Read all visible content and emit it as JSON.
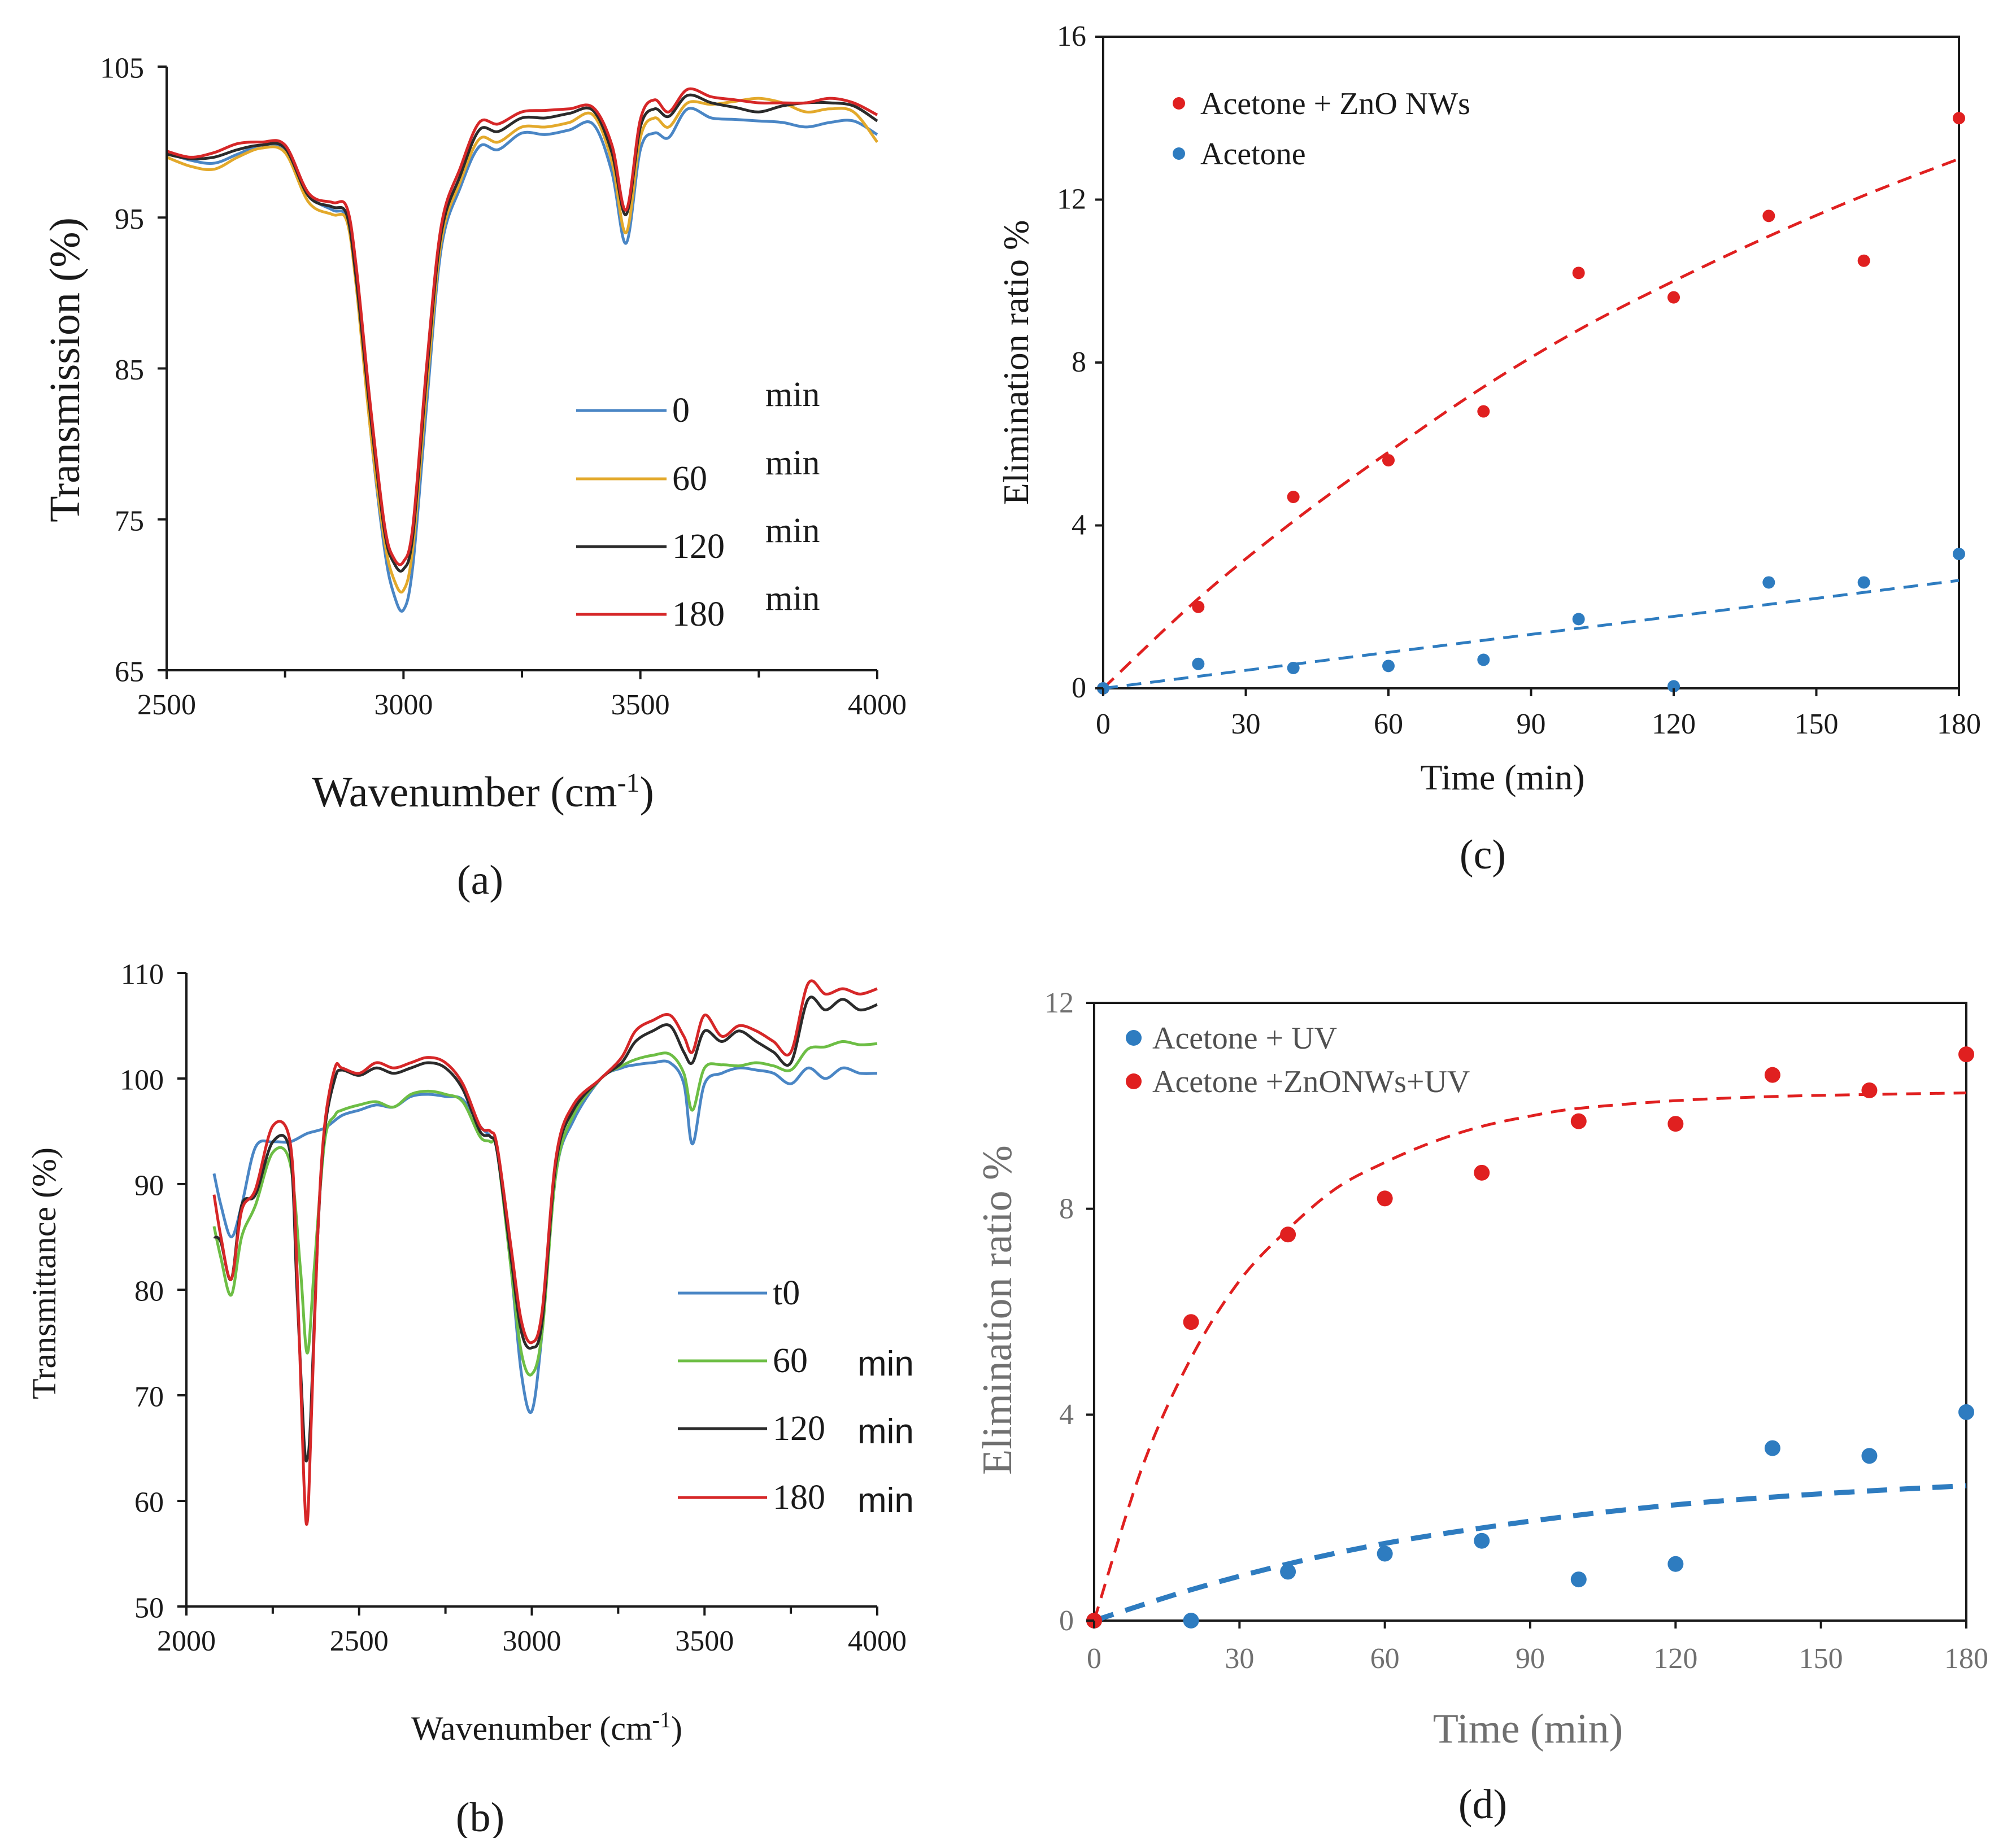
{
  "chart_data": [
    {
      "panel": "(a)",
      "type": "line",
      "xlabel": "Wavenumber (cm",
      "xlabel_sup": "-1",
      "xlabel_end": ")",
      "ylabel": "Transmission (%)",
      "xlim": [
        2500,
        4000
      ],
      "ylim": [
        65,
        105
      ],
      "xticks": [
        2500,
        3000,
        3500,
        4000
      ],
      "yticks": [
        65,
        75,
        85,
        95,
        105
      ],
      "legend_unit": "min",
      "series": [
        {
          "name": "0",
          "color": "#4A86C5",
          "x": [
            2500,
            2550,
            2600,
            2650,
            2700,
            2750,
            2800,
            2850,
            2880,
            2900,
            2930,
            2960,
            2980,
            3000,
            3020,
            3050,
            3080,
            3120,
            3160,
            3200,
            3250,
            3300,
            3350,
            3400,
            3440,
            3470,
            3500,
            3530,
            3560,
            3600,
            3650,
            3700,
            3750,
            3800,
            3850,
            3900,
            3950,
            4000
          ],
          "y": [
            99.3,
            98.8,
            98.6,
            99.2,
            99.8,
            99.5,
            96.5,
            95.5,
            95.0,
            91.0,
            81.0,
            73.0,
            70.0,
            69.0,
            72.0,
            83.0,
            93.0,
            97.0,
            99.7,
            99.5,
            100.6,
            100.5,
            100.8,
            101.2,
            98.0,
            93.3,
            99.5,
            100.6,
            100.3,
            102.2,
            101.6,
            101.5,
            101.4,
            101.3,
            101.0,
            101.3,
            101.4,
            100.5
          ]
        },
        {
          "name": "60",
          "color": "#E3A92B",
          "x": [
            2500,
            2550,
            2600,
            2650,
            2700,
            2750,
            2800,
            2850,
            2880,
            2900,
            2930,
            2960,
            2980,
            3000,
            3020,
            3050,
            3080,
            3120,
            3160,
            3200,
            3250,
            3300,
            3350,
            3400,
            3440,
            3470,
            3500,
            3530,
            3560,
            3600,
            3650,
            3700,
            3750,
            3800,
            3850,
            3900,
            3950,
            4000
          ],
          "y": [
            99.0,
            98.4,
            98.2,
            99.0,
            99.6,
            99.3,
            96.0,
            95.2,
            94.8,
            90.5,
            81.0,
            73.6,
            71.0,
            70.3,
            73.2,
            84.0,
            93.5,
            97.4,
            100.2,
            100.0,
            101.0,
            101.0,
            101.3,
            101.8,
            98.7,
            94.0,
            100.3,
            101.6,
            101.0,
            102.6,
            102.5,
            102.7,
            102.9,
            102.6,
            102.0,
            102.2,
            102.0,
            100.0
          ]
        },
        {
          "name": "120",
          "color": "#2B2B2B",
          "x": [
            2500,
            2550,
            2600,
            2650,
            2700,
            2750,
            2800,
            2850,
            2880,
            2900,
            2930,
            2960,
            2980,
            3000,
            3020,
            3050,
            3080,
            3120,
            3160,
            3200,
            3250,
            3300,
            3350,
            3400,
            3440,
            3470,
            3500,
            3530,
            3560,
            3600,
            3650,
            3700,
            3750,
            3800,
            3850,
            3900,
            3950,
            4000
          ],
          "y": [
            99.2,
            98.9,
            99.0,
            99.5,
            99.8,
            99.6,
            96.4,
            95.7,
            95.2,
            91.0,
            82.0,
            74.2,
            72.1,
            71.7,
            74.0,
            85.0,
            94.0,
            97.8,
            100.8,
            100.7,
            101.6,
            101.6,
            101.9,
            102.1,
            99.3,
            95.2,
            101.0,
            102.2,
            101.7,
            103.1,
            102.6,
            102.3,
            102.0,
            102.4,
            102.6,
            102.6,
            102.4,
            101.4
          ]
        },
        {
          "name": "180",
          "color": "#D62728",
          "x": [
            2500,
            2550,
            2600,
            2650,
            2700,
            2750,
            2800,
            2850,
            2880,
            2900,
            2930,
            2960,
            2980,
            3000,
            3020,
            3050,
            3080,
            3120,
            3160,
            3200,
            3250,
            3300,
            3350,
            3400,
            3440,
            3470,
            3500,
            3530,
            3560,
            3600,
            3650,
            3700,
            3750,
            3800,
            3850,
            3900,
            3950,
            4000
          ],
          "y": [
            99.4,
            99.0,
            99.3,
            99.9,
            100.0,
            99.8,
            96.6,
            96.0,
            95.7,
            91.8,
            82.6,
            74.6,
            72.4,
            72.2,
            74.6,
            85.6,
            94.5,
            98.3,
            101.3,
            101.2,
            102.0,
            102.1,
            102.2,
            102.3,
            99.8,
            95.5,
            101.5,
            102.8,
            102.0,
            103.5,
            103.0,
            102.8,
            102.6,
            102.6,
            102.6,
            102.9,
            102.6,
            101.8
          ]
        }
      ]
    },
    {
      "panel": "(b)",
      "type": "line",
      "xlabel": "Wavenumber (cm",
      "xlabel_sup": "-1",
      "xlabel_end": ")",
      "ylabel": "Transmittance (%)",
      "xlim": [
        2000,
        4000
      ],
      "ylim": [
        50,
        110
      ],
      "xticks": [
        2000,
        2500,
        3000,
        3500,
        4000
      ],
      "yticks": [
        50,
        60,
        70,
        80,
        90,
        100,
        110
      ],
      "legend_unit": "min",
      "series": [
        {
          "name": "t0",
          "color": "#4A86C5",
          "x": [
            2080,
            2100,
            2130,
            2160,
            2200,
            2250,
            2300,
            2350,
            2400,
            2450,
            2500,
            2550,
            2600,
            2650,
            2700,
            2750,
            2800,
            2850,
            2880,
            2900,
            2940,
            2970,
            3000,
            3030,
            3070,
            3120,
            3200,
            3260,
            3300,
            3350,
            3400,
            3440,
            3465,
            3500,
            3550,
            3600,
            3650,
            3700,
            3750,
            3800,
            3850,
            3900,
            3950,
            4000
          ],
          "y": [
            91,
            88,
            85,
            88,
            93.5,
            94,
            94,
            94.8,
            95.3,
            96.5,
            97,
            97.5,
            97.3,
            98.3,
            98.5,
            98.3,
            98,
            95.5,
            94.5,
            93,
            82,
            72,
            68.5,
            76,
            91,
            96,
            100,
            101,
            101.3,
            101.5,
            101.5,
            99.5,
            93.8,
            99.5,
            100.5,
            101,
            100.8,
            100.5,
            99.5,
            101,
            100,
            101,
            100.5,
            100.5
          ]
        },
        {
          "name": "60",
          "color": "#6DBE45",
          "x": [
            2080,
            2100,
            2130,
            2160,
            2200,
            2250,
            2300,
            2330,
            2350,
            2370,
            2400,
            2430,
            2450,
            2500,
            2550,
            2600,
            2650,
            2700,
            2750,
            2800,
            2850,
            2880,
            2900,
            2940,
            2970,
            3000,
            3030,
            3070,
            3120,
            3200,
            3260,
            3300,
            3350,
            3400,
            3440,
            3465,
            3500,
            3550,
            3600,
            3650,
            3700,
            3750,
            3800,
            3850,
            3900,
            3950,
            4000
          ],
          "y": [
            86,
            83,
            79.5,
            85,
            88,
            93,
            92,
            82,
            74,
            82,
            94,
            96.5,
            97,
            97.5,
            97.8,
            97.3,
            98.5,
            98.8,
            98.5,
            97.8,
            94.5,
            94,
            93,
            82,
            74,
            72,
            76,
            91,
            96.5,
            100,
            101.2,
            101.8,
            102.2,
            102.3,
            100.5,
            97,
            101,
            101.3,
            101.2,
            101.5,
            101.2,
            100.8,
            102.8,
            103,
            103.5,
            103.2,
            103.3
          ]
        },
        {
          "name": "120",
          "color": "#2B2B2B",
          "x": [
            2080,
            2100,
            2130,
            2160,
            2200,
            2250,
            2300,
            2320,
            2340,
            2350,
            2360,
            2380,
            2400,
            2430,
            2450,
            2500,
            2550,
            2600,
            2650,
            2700,
            2750,
            2800,
            2850,
            2880,
            2900,
            2940,
            2970,
            3000,
            3030,
            3070,
            3120,
            3200,
            3260,
            3300,
            3350,
            3400,
            3440,
            3465,
            3500,
            3550,
            3600,
            3650,
            3700,
            3750,
            3800,
            3850,
            3900,
            3950,
            4000
          ],
          "y": [
            85,
            84.5,
            81,
            88,
            89,
            94,
            93,
            80,
            66,
            64,
            68,
            85,
            95,
            100,
            100.8,
            100.3,
            101,
            100.5,
            101,
            101.5,
            101,
            99,
            95,
            94.5,
            93,
            83,
            76,
            74.5,
            77,
            92,
            97,
            100,
            101.5,
            103.5,
            104.5,
            105,
            102.5,
            101.5,
            104.5,
            103.5,
            104.5,
            103.5,
            102.5,
            101.5,
            107.5,
            106.5,
            107.5,
            106.5,
            107
          ]
        },
        {
          "name": "180",
          "color": "#D62728",
          "x": [
            2080,
            2100,
            2130,
            2160,
            2200,
            2250,
            2300,
            2320,
            2340,
            2350,
            2360,
            2380,
            2400,
            2430,
            2450,
            2500,
            2550,
            2600,
            2650,
            2700,
            2750,
            2800,
            2850,
            2880,
            2900,
            2940,
            2970,
            3000,
            3030,
            3070,
            3120,
            3200,
            3260,
            3300,
            3350,
            3400,
            3440,
            3465,
            3500,
            3550,
            3600,
            3650,
            3700,
            3750,
            3800,
            3850,
            3900,
            3950,
            4000
          ],
          "y": [
            89,
            85,
            81,
            87.5,
            89.5,
            95.5,
            94,
            82,
            62,
            58,
            66,
            85,
            95.5,
            101,
            101,
            100.5,
            101.5,
            101,
            101.5,
            102,
            101.5,
            99.5,
            95.5,
            95,
            93.5,
            84,
            77,
            75,
            78,
            92.5,
            97.5,
            100,
            102,
            104.5,
            105.5,
            106,
            104,
            102.5,
            106,
            104,
            105,
            104.5,
            103.5,
            102.5,
            109,
            108,
            108.5,
            108,
            108.5
          ]
        }
      ]
    },
    {
      "panel": "(c)",
      "type": "scatter",
      "xlabel": "Time (min)",
      "ylabel": "Elimination ratio %",
      "xlim": [
        0,
        180
      ],
      "ylim": [
        0,
        16
      ],
      "xticks": [
        0,
        30,
        60,
        90,
        120,
        150,
        180
      ],
      "yticks": [
        0,
        4,
        8,
        12,
        16
      ],
      "series": [
        {
          "name": "Acetone + ZnO NWs",
          "color": "#E02020",
          "x": [
            0,
            20,
            40,
            60,
            80,
            100,
            120,
            140,
            160,
            180
          ],
          "y": [
            0,
            2.0,
            4.7,
            5.6,
            6.8,
            10.2,
            9.6,
            11.6,
            10.5,
            14.0
          ],
          "fit": {
            "style": "dashed",
            "x": [
              0,
              20,
              40,
              60,
              80,
              100,
              120,
              140,
              160,
              180
            ],
            "y": [
              0,
              2.2,
              4.1,
              5.8,
              7.4,
              8.8,
              10.0,
              11.1,
              12.1,
              13.0
            ]
          }
        },
        {
          "name": "Acetone",
          "color": "#2E7CC0",
          "x": [
            0,
            20,
            40,
            60,
            80,
            100,
            120,
            140,
            160,
            180
          ],
          "y": [
            0,
            0.6,
            0.5,
            0.55,
            0.7,
            1.7,
            0.05,
            2.6,
            2.6,
            3.3
          ],
          "fit": {
            "style": "dashed",
            "x": [
              0,
              180
            ],
            "y": [
              0,
              2.65
            ]
          }
        }
      ]
    },
    {
      "panel": "(d)",
      "type": "scatter",
      "xlabel": "Time (min)",
      "ylabel": "Elimination ratio %",
      "xlim": [
        0,
        180
      ],
      "ylim": [
        0,
        12
      ],
      "xticks": [
        0,
        30,
        60,
        90,
        120,
        150,
        180
      ],
      "yticks": [
        0,
        4,
        8,
        12
      ],
      "series": [
        {
          "name": "Acetone + UV",
          "color": "#2E7CC0",
          "x": [
            0,
            20,
            40,
            60,
            80,
            100,
            120,
            140,
            160,
            180
          ],
          "y": [
            0,
            0,
            0.95,
            1.3,
            1.55,
            0.8,
            1.1,
            3.35,
            3.2,
            4.05
          ],
          "fit": {
            "style": "dashed-bold",
            "x": [
              0,
              20,
              40,
              60,
              80,
              100,
              120,
              140,
              160,
              180
            ],
            "y": [
              0,
              0.6,
              1.1,
              1.5,
              1.8,
              2.05,
              2.25,
              2.4,
              2.52,
              2.62
            ]
          }
        },
        {
          "name": "Acetone +ZnONWs+UV",
          "color": "#E02020",
          "x": [
            0,
            20,
            40,
            60,
            80,
            100,
            120,
            140,
            160,
            180
          ],
          "y": [
            0,
            5.8,
            7.5,
            8.2,
            8.7,
            9.7,
            9.65,
            10.6,
            10.3,
            11.0
          ],
          "fit": {
            "style": "dashed",
            "x": [
              0,
              10,
              20,
              30,
              40,
              50,
              60,
              70,
              80,
              90,
              100,
              120,
              140,
              160,
              180
            ],
            "y": [
              0,
              3.0,
              5.1,
              6.6,
              7.6,
              8.4,
              8.9,
              9.3,
              9.6,
              9.8,
              9.95,
              10.1,
              10.18,
              10.22,
              10.25
            ]
          }
        }
      ]
    }
  ]
}
